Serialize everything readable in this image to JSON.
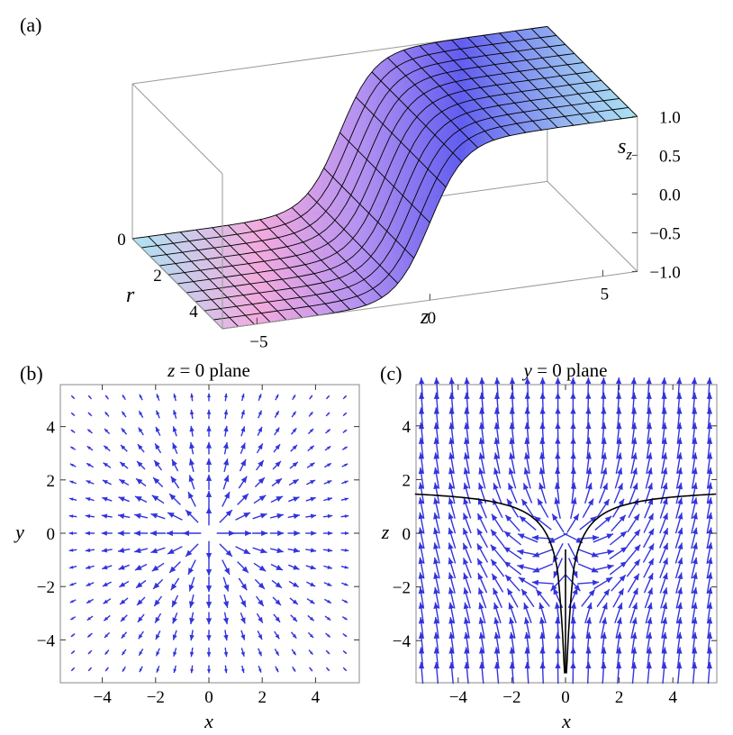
{
  "panels": {
    "a": {
      "label": "(a)"
    },
    "b": {
      "label": "(b)",
      "title_var": "z",
      "title_rest": " = 0 plane"
    },
    "c": {
      "label": "(c)",
      "title_var": "y",
      "title_rest": " = 0 plane"
    }
  },
  "chart_data": [
    {
      "type": "surface",
      "panel": "a",
      "function": "s_z = tanh(z)",
      "xlabel": "r",
      "ylabel": "z",
      "zlabel": "s_z",
      "xlim": [
        0,
        5
      ],
      "ylim": [
        -6,
        6
      ],
      "zlim": [
        -1,
        1
      ],
      "r_ticks": [
        "0",
        "2",
        "4"
      ],
      "z_ticks": [
        "−5",
        "0",
        "5"
      ],
      "s_ticks": [
        "1.0",
        "0.5",
        "0.0",
        "−0.5",
        "−1.0"
      ],
      "colors": {
        "low": "#a9e2f2",
        "mid": "#f2a6dc",
        "high": "#5a55ee",
        "mesh": "#000000"
      }
    },
    {
      "type": "vector_field",
      "panel": "b",
      "plane": "z = 0",
      "field": "radial outward, magnitude falling with distance from origin",
      "xlabel": "x",
      "ylabel": "y",
      "xlim": [
        -5.7,
        5.7
      ],
      "ylim": [
        -5.7,
        5.7
      ],
      "x_ticks": [
        "−4",
        "−2",
        "0",
        "2",
        "4"
      ],
      "y_ticks": [
        "−4",
        "−2",
        "0",
        "2",
        "4"
      ],
      "arrow_color": "#3333dd"
    },
    {
      "type": "vector_field",
      "panel": "c",
      "plane": "y = 0",
      "field": "upward (+z) at large |x| and |z|, radial near origin, with curved separatrix",
      "xlabel": "x",
      "ylabel": "z",
      "xlim": [
        -5.7,
        5.7
      ],
      "ylim": [
        -5.7,
        5.7
      ],
      "x_ticks": [
        "−4",
        "−2",
        "0",
        "2",
        "4"
      ],
      "y_ticks": [
        "−4",
        "−2",
        "0",
        "2",
        "4"
      ],
      "arrow_color": "#3333dd",
      "separatrix_color": "#000000"
    }
  ]
}
